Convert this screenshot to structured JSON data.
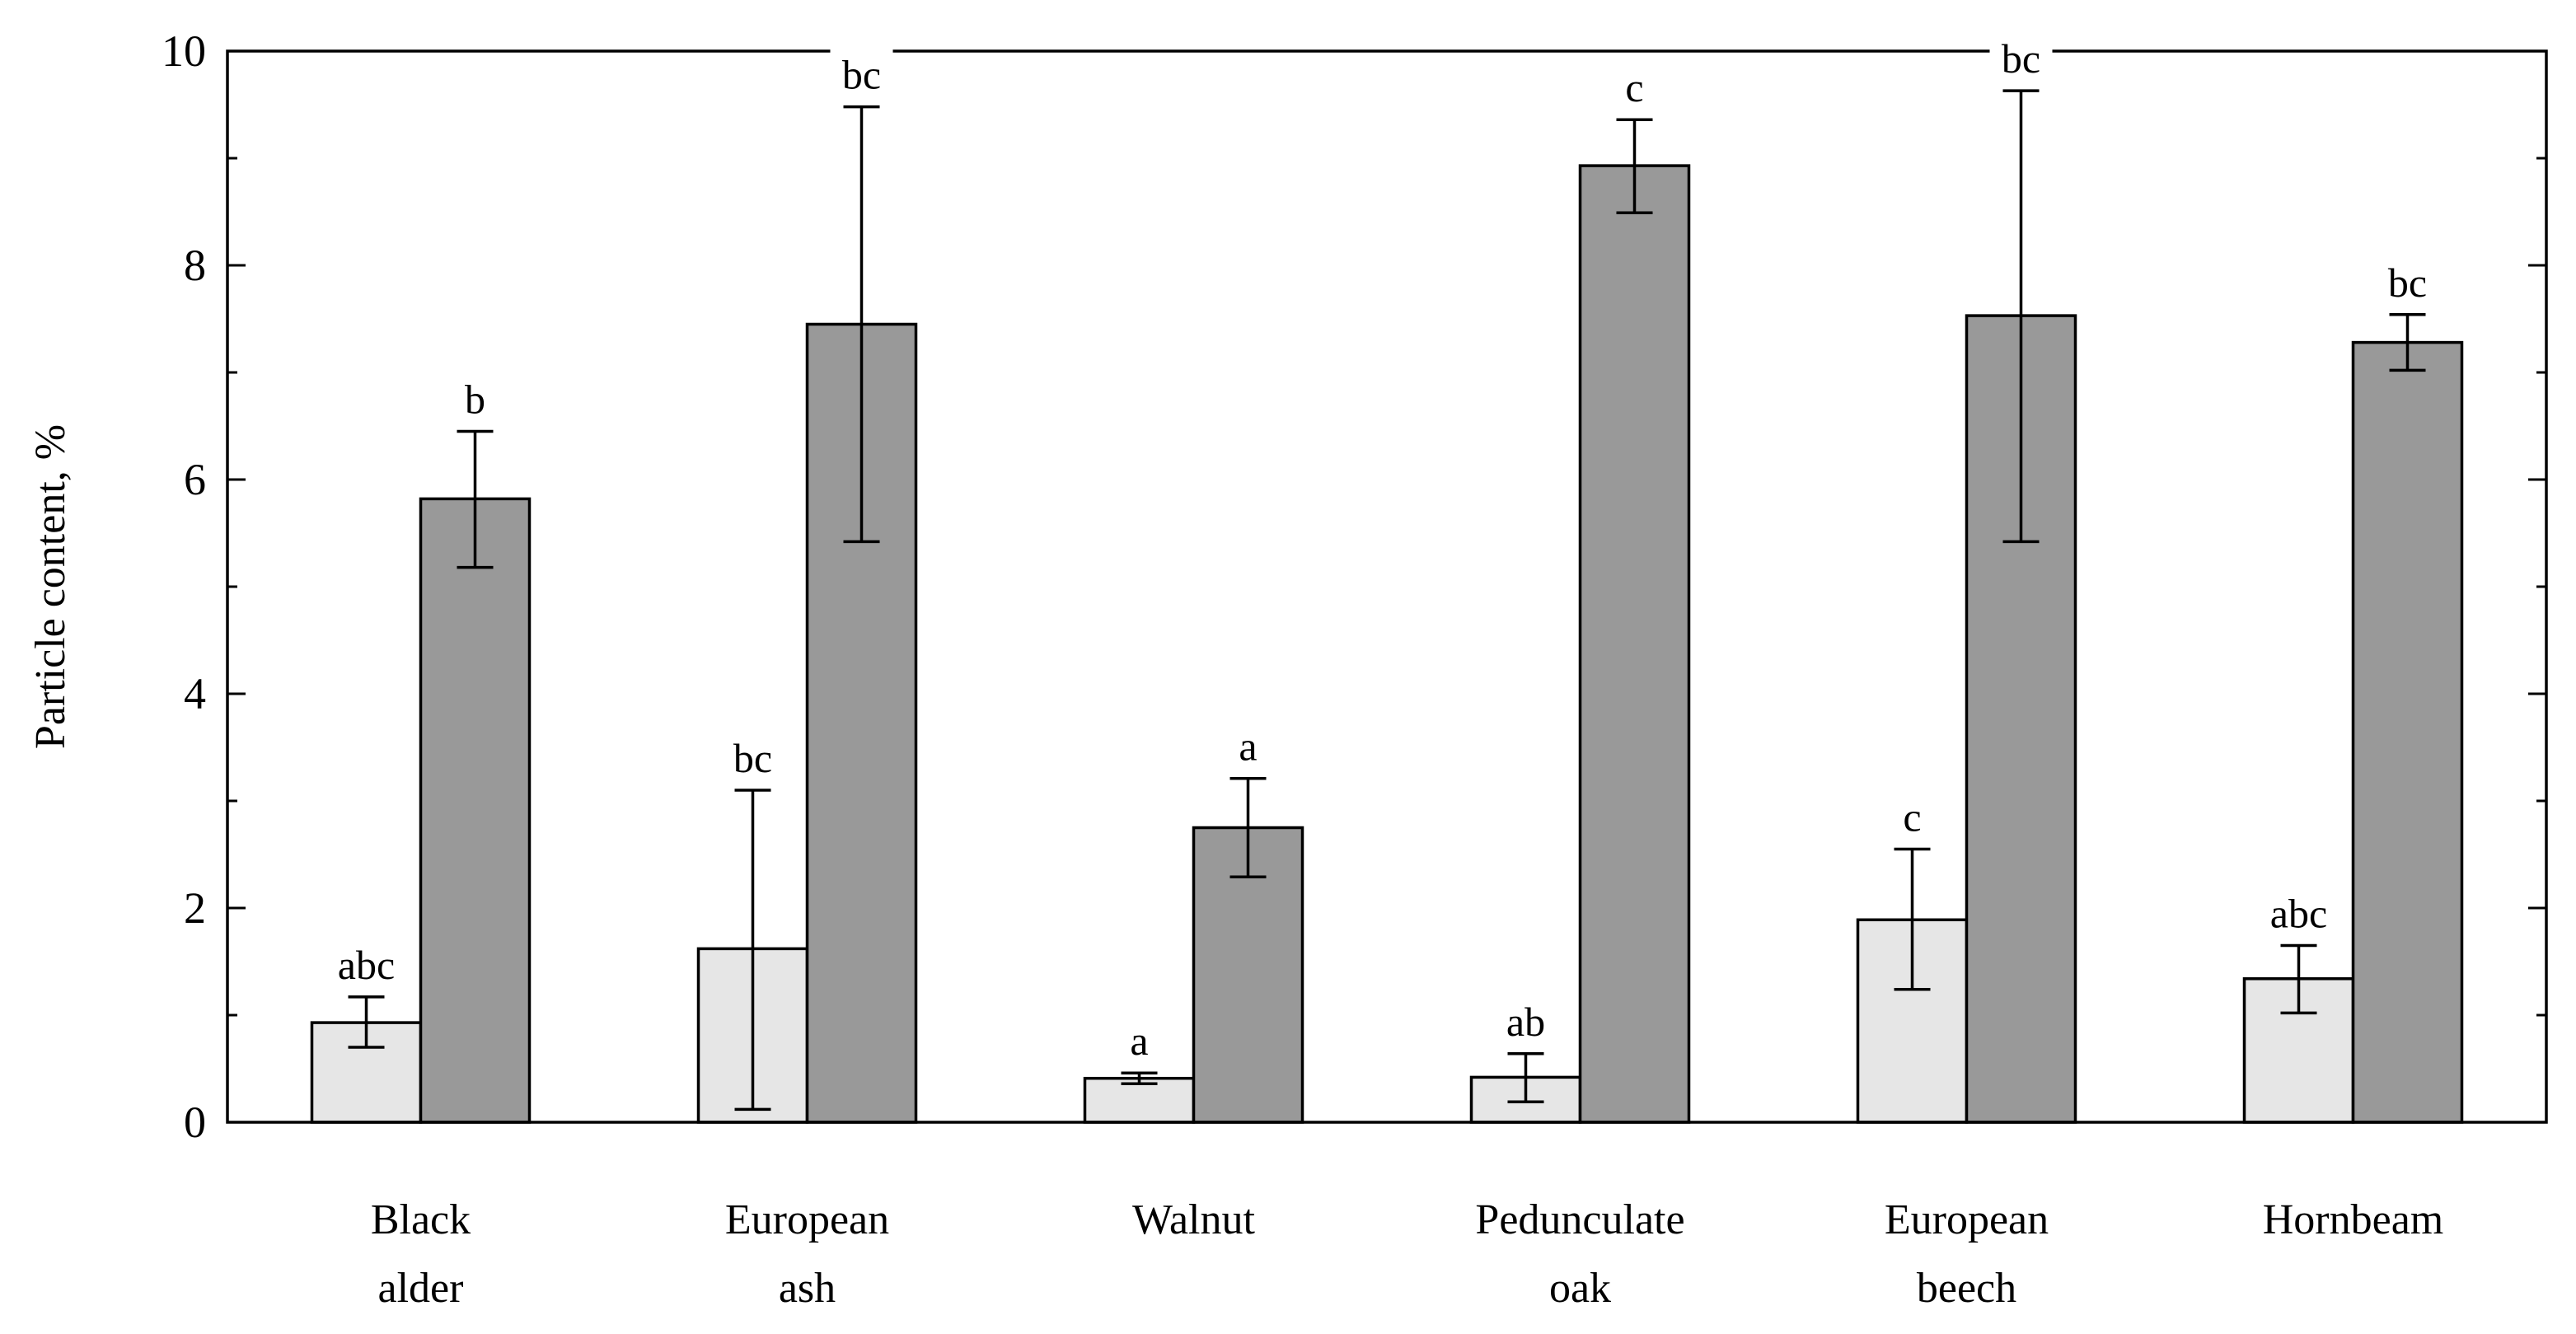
{
  "chart_data": {
    "type": "bar",
    "title": "",
    "xlabel": "",
    "ylabel": "Particle content, %",
    "ylim": [
      0,
      10
    ],
    "yticks": [
      "0",
      "2",
      "4",
      "6",
      "8",
      "10"
    ],
    "grid": false,
    "categories": [
      {
        "line1": "Black",
        "line2": "alder"
      },
      {
        "line1": "European",
        "line2": "ash"
      },
      {
        "line1": "Walnut",
        "line2": ""
      },
      {
        "line1": "Pedunculate",
        "line2": "oak"
      },
      {
        "line1": "European",
        "line2": "beech"
      },
      {
        "line1": "Hornbeam",
        "line2": ""
      }
    ],
    "series": [
      {
        "name": "light",
        "color": "#e6e6e6",
        "values": [
          0.93,
          1.62,
          0.41,
          0.42,
          1.89,
          1.34
        ],
        "error_low": [
          0.7,
          0.12,
          0.36,
          0.19,
          1.24,
          1.02
        ],
        "error_high": [
          1.17,
          3.1,
          0.46,
          0.64,
          2.55,
          1.65
        ],
        "sig": [
          "abc",
          "bc",
          "a",
          "ab",
          "c",
          "abc"
        ]
      },
      {
        "name": "dark",
        "color": "#999999",
        "values": [
          5.82,
          7.45,
          2.75,
          8.93,
          7.53,
          7.28
        ],
        "error_low": [
          5.18,
          5.42,
          2.29,
          8.49,
          5.42,
          7.02
        ],
        "error_high": [
          6.45,
          9.48,
          3.21,
          9.36,
          9.63,
          7.54
        ],
        "sig": [
          "b",
          "bc",
          "a",
          "c",
          "bc",
          "bc"
        ]
      }
    ]
  }
}
